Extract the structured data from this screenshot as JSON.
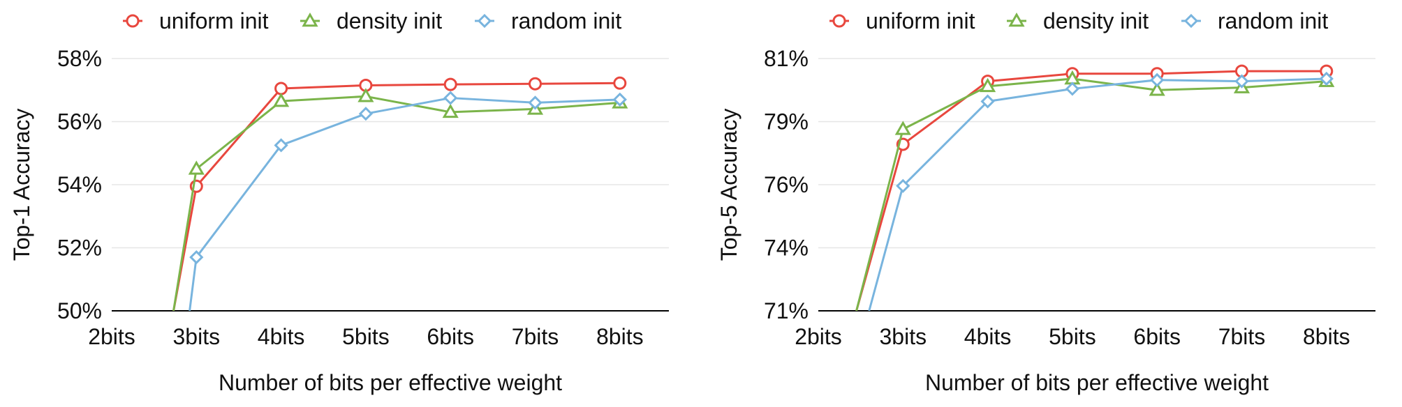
{
  "chart_data": [
    {
      "type": "line",
      "xlabel": "Number of bits per effective weight",
      "ylabel": "Top-1 Accuracy",
      "categories": [
        "2bits",
        "3bits",
        "4bits",
        "5bits",
        "6bits",
        "7bits",
        "8bits"
      ],
      "yticks": [
        "50%",
        "52%",
        "54%",
        "56%",
        "58%"
      ],
      "ylim": [
        50,
        58
      ],
      "grid": true,
      "legend_position": "top",
      "series": [
        {
          "name": "uniform init",
          "marker": "circle",
          "color": "#e8473e",
          "x": [
            2.73,
            3,
            4,
            5,
            6,
            7,
            8
          ],
          "values": [
            50.0,
            53.95,
            57.05,
            57.15,
            57.18,
            57.2,
            57.22
          ]
        },
        {
          "name": "density init",
          "marker": "triangle",
          "color": "#7bb44a",
          "x": [
            2.73,
            3,
            4,
            5,
            6,
            7,
            8
          ],
          "values": [
            50.0,
            54.5,
            56.65,
            56.8,
            56.3,
            56.4,
            56.6
          ]
        },
        {
          "name": "random init",
          "marker": "diamond",
          "color": "#78b4de",
          "x": [
            2.92,
            3,
            4,
            5,
            6,
            7,
            8
          ],
          "values": [
            50.0,
            51.7,
            55.25,
            56.25,
            56.75,
            56.6,
            56.7
          ]
        }
      ]
    },
    {
      "type": "line",
      "xlabel": "Number of bits per effective weight",
      "ylabel": "Top-5 Accuracy",
      "categories": [
        "2bits",
        "3bits",
        "4bits",
        "5bits",
        "6bits",
        "7bits",
        "8bits"
      ],
      "yticks": [
        "71%",
        "74%",
        "76%",
        "79%",
        "81%"
      ],
      "ylim": [
        71,
        81
      ],
      "grid": true,
      "legend_position": "top",
      "series": [
        {
          "name": "uniform init",
          "marker": "circle",
          "color": "#e8473e",
          "x": [
            2.45,
            3,
            4,
            5,
            6,
            7,
            8
          ],
          "values": [
            71.0,
            77.6,
            80.1,
            80.4,
            80.4,
            80.5,
            80.5
          ]
        },
        {
          "name": "density init",
          "marker": "triangle",
          "color": "#7bb44a",
          "x": [
            2.45,
            3,
            4,
            5,
            6,
            7,
            8
          ],
          "values": [
            71.0,
            78.2,
            79.9,
            80.2,
            79.75,
            79.85,
            80.1
          ]
        },
        {
          "name": "random init",
          "marker": "diamond",
          "color": "#78b4de",
          "x": [
            2.6,
            3,
            4,
            5,
            6,
            7,
            8
          ],
          "values": [
            71.0,
            75.95,
            79.3,
            79.8,
            80.15,
            80.1,
            80.2
          ]
        }
      ]
    }
  ]
}
